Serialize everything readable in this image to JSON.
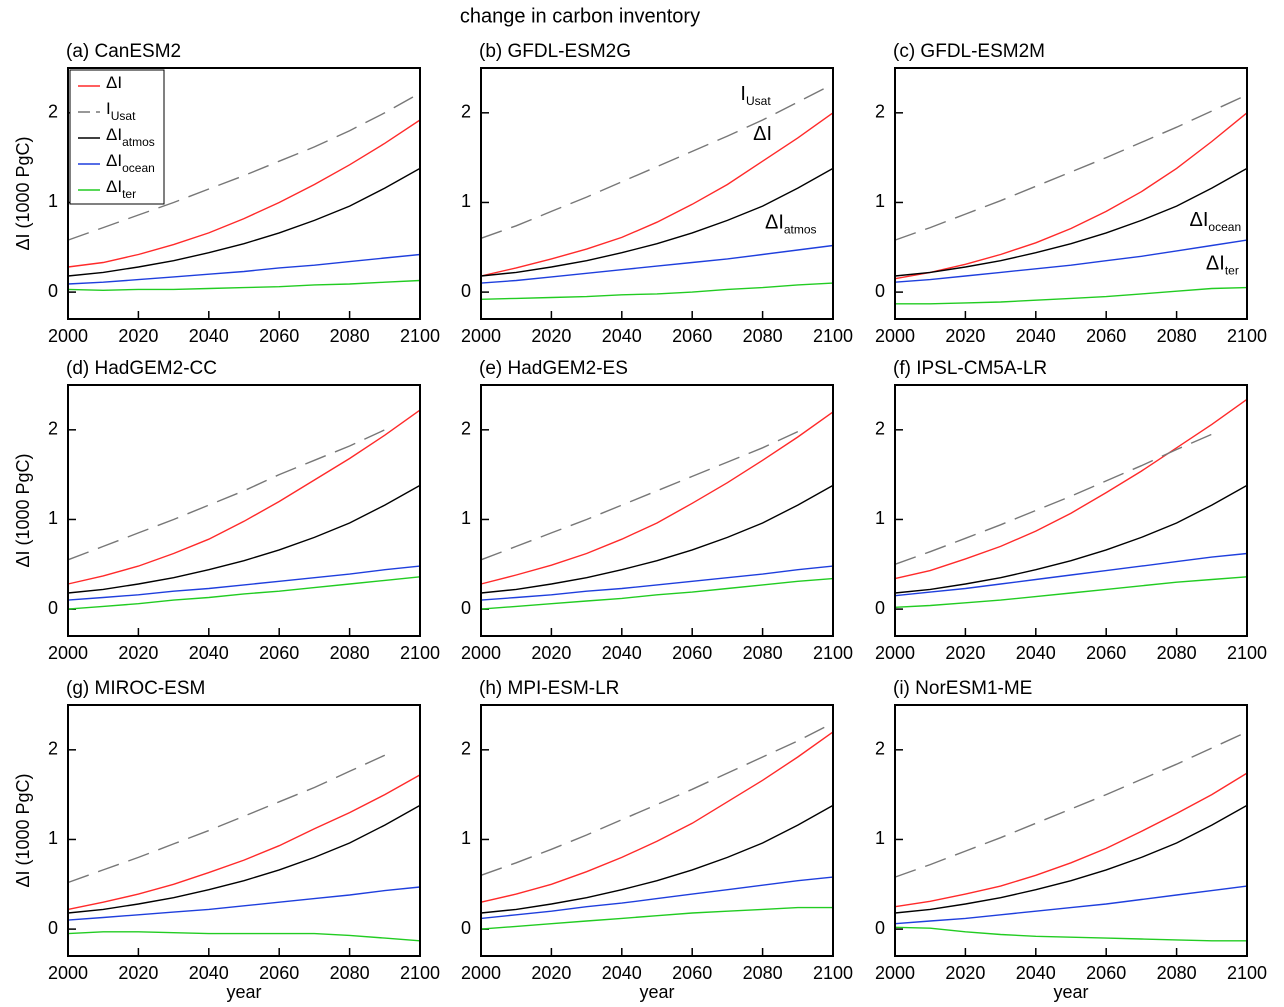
{
  "title": "change in carbon inventory",
  "chart_data": [
    {
      "type": "line",
      "title": "(a) CanESM2",
      "ylabel": "ΔI  (1000 PgC)",
      "legend": "upper left",
      "x": [
        2000,
        2010,
        2020,
        2030,
        2040,
        2050,
        2060,
        2070,
        2080,
        2090,
        2100
      ],
      "xlim": [
        2000,
        2100
      ],
      "ylim": [
        -0.3,
        2.5
      ],
      "xticks": [
        2000,
        2020,
        2040,
        2060,
        2080,
        2100
      ],
      "yticks": [
        0,
        1,
        2
      ],
      "series": [
        {
          "name": "ΔI",
          "color": "#ff2a2a",
          "values": [
            0.28,
            0.33,
            0.42,
            0.53,
            0.66,
            0.82,
            1.0,
            1.2,
            1.42,
            1.66,
            1.92
          ]
        },
        {
          "name": "I",
          "subscript": "Usat",
          "color": "#777777",
          "dash": true,
          "values": [
            0.58,
            0.72,
            0.86,
            1.0,
            1.15,
            1.3,
            1.46,
            1.62,
            1.8,
            2.0,
            2.22
          ]
        },
        {
          "name": "ΔI",
          "subscript": "atmos",
          "color": "#000000",
          "values": [
            0.18,
            0.22,
            0.28,
            0.35,
            0.44,
            0.54,
            0.66,
            0.8,
            0.96,
            1.16,
            1.38
          ]
        },
        {
          "name": "ΔI",
          "subscript": "ocean",
          "color": "#1f3fdd",
          "values": [
            0.09,
            0.11,
            0.14,
            0.17,
            0.2,
            0.23,
            0.27,
            0.3,
            0.34,
            0.38,
            0.42
          ]
        },
        {
          "name": "ΔI",
          "subscript": "ter",
          "color": "#22cc22",
          "values": [
            0.03,
            0.02,
            0.03,
            0.03,
            0.04,
            0.05,
            0.06,
            0.08,
            0.09,
            0.11,
            0.13
          ]
        }
      ]
    },
    {
      "type": "line",
      "title": "(b) GFDL-ESM2G",
      "x": [
        2000,
        2010,
        2020,
        2030,
        2040,
        2050,
        2060,
        2070,
        2080,
        2090,
        2100
      ],
      "xlim": [
        2000,
        2100
      ],
      "ylim": [
        -0.3,
        2.5
      ],
      "xticks": [
        2000,
        2020,
        2040,
        2060,
        2080,
        2100
      ],
      "yticks": [
        0,
        1,
        2
      ],
      "series": [
        {
          "color": "#ff2a2a",
          "values": [
            0.18,
            0.27,
            0.37,
            0.48,
            0.61,
            0.78,
            0.98,
            1.2,
            1.46,
            1.72,
            2.0
          ]
        },
        {
          "color": "#777777",
          "dash": true,
          "values": [
            0.6,
            0.74,
            0.9,
            1.06,
            1.23,
            1.4,
            1.57,
            1.74,
            1.92,
            2.12,
            2.32
          ]
        },
        {
          "color": "#000000",
          "values": [
            0.18,
            0.22,
            0.28,
            0.35,
            0.44,
            0.54,
            0.66,
            0.8,
            0.96,
            1.16,
            1.38
          ]
        },
        {
          "color": "#1f3fdd",
          "values": [
            0.1,
            0.13,
            0.17,
            0.21,
            0.25,
            0.29,
            0.33,
            0.37,
            0.42,
            0.47,
            0.52
          ]
        },
        {
          "color": "#22cc22",
          "values": [
            -0.08,
            -0.07,
            -0.06,
            -0.05,
            -0.03,
            -0.02,
            0.0,
            0.03,
            0.05,
            0.08,
            0.1
          ]
        }
      ],
      "annotations": [
        {
          "text": "I",
          "subscript": "Usat",
          "series": 1
        },
        {
          "text": "ΔI",
          "series": 0
        },
        {
          "text": "ΔI",
          "subscript": "atmos",
          "series": 2
        }
      ]
    },
    {
      "type": "line",
      "title": "(c) GFDL-ESM2M",
      "x": [
        2000,
        2010,
        2020,
        2030,
        2040,
        2050,
        2060,
        2070,
        2080,
        2090,
        2100
      ],
      "xlim": [
        2000,
        2100
      ],
      "ylim": [
        -0.3,
        2.5
      ],
      "xticks": [
        2000,
        2020,
        2040,
        2060,
        2080,
        2100
      ],
      "yticks": [
        0,
        1,
        2
      ],
      "series": [
        {
          "color": "#ff2a2a",
          "values": [
            0.15,
            0.22,
            0.31,
            0.42,
            0.55,
            0.71,
            0.9,
            1.12,
            1.38,
            1.68,
            2.0
          ]
        },
        {
          "color": "#777777",
          "dash": true,
          "values": [
            0.58,
            0.72,
            0.87,
            1.02,
            1.18,
            1.34,
            1.5,
            1.67,
            1.84,
            2.02,
            2.2
          ]
        },
        {
          "color": "#000000",
          "values": [
            0.18,
            0.22,
            0.28,
            0.35,
            0.44,
            0.54,
            0.66,
            0.8,
            0.96,
            1.16,
            1.38
          ]
        },
        {
          "color": "#1f3fdd",
          "values": [
            0.11,
            0.14,
            0.18,
            0.22,
            0.26,
            0.3,
            0.35,
            0.4,
            0.46,
            0.52,
            0.58
          ]
        },
        {
          "color": "#22cc22",
          "values": [
            -0.13,
            -0.13,
            -0.12,
            -0.11,
            -0.09,
            -0.07,
            -0.05,
            -0.02,
            0.01,
            0.04,
            0.05
          ]
        }
      ],
      "annotations": [
        {
          "text": "ΔI",
          "subscript": "ocean",
          "series": 3
        },
        {
          "text": "ΔI",
          "subscript": "ter",
          "series": 4
        }
      ]
    },
    {
      "type": "line",
      "title": "(d) HadGEM2-CC",
      "ylabel": "ΔI  (1000 PgC)",
      "x": [
        2000,
        2010,
        2020,
        2030,
        2040,
        2050,
        2060,
        2070,
        2080,
        2090,
        2100
      ],
      "xlim": [
        2000,
        2100
      ],
      "ylim": [
        -0.3,
        2.5
      ],
      "xticks": [
        2000,
        2020,
        2040,
        2060,
        2080,
        2100
      ],
      "yticks": [
        0,
        1,
        2
      ],
      "series": [
        {
          "color": "#ff2a2a",
          "values": [
            0.28,
            0.37,
            0.48,
            0.62,
            0.78,
            0.98,
            1.2,
            1.44,
            1.68,
            1.94,
            2.22
          ]
        },
        {
          "color": "#777777",
          "dash": true,
          "values": [
            0.55,
            0.7,
            0.85,
            1.0,
            1.16,
            1.32,
            1.5,
            1.66,
            1.82,
            2.0,
            null
          ]
        },
        {
          "color": "#000000",
          "values": [
            0.18,
            0.22,
            0.28,
            0.35,
            0.44,
            0.54,
            0.66,
            0.8,
            0.96,
            1.16,
            1.38
          ]
        },
        {
          "color": "#1f3fdd",
          "values": [
            0.1,
            0.13,
            0.16,
            0.2,
            0.23,
            0.27,
            0.31,
            0.35,
            0.39,
            0.44,
            0.48
          ]
        },
        {
          "color": "#22cc22",
          "values": [
            0.0,
            0.03,
            0.06,
            0.1,
            0.13,
            0.17,
            0.2,
            0.24,
            0.28,
            0.32,
            0.36
          ]
        }
      ]
    },
    {
      "type": "line",
      "title": "(e) HadGEM2-ES",
      "x": [
        2000,
        2010,
        2020,
        2030,
        2040,
        2050,
        2060,
        2070,
        2080,
        2090,
        2100
      ],
      "xlim": [
        2000,
        2100
      ],
      "ylim": [
        -0.3,
        2.5
      ],
      "xticks": [
        2000,
        2020,
        2040,
        2060,
        2080,
        2100
      ],
      "yticks": [
        0,
        1,
        2
      ],
      "series": [
        {
          "color": "#ff2a2a",
          "values": [
            0.28,
            0.38,
            0.49,
            0.62,
            0.78,
            0.96,
            1.18,
            1.41,
            1.66,
            1.92,
            2.2
          ]
        },
        {
          "color": "#777777",
          "dash": true,
          "values": [
            0.55,
            0.7,
            0.85,
            1.0,
            1.16,
            1.32,
            1.48,
            1.64,
            1.8,
            1.98,
            null
          ]
        },
        {
          "color": "#000000",
          "values": [
            0.18,
            0.22,
            0.28,
            0.35,
            0.44,
            0.54,
            0.66,
            0.8,
            0.96,
            1.16,
            1.38
          ]
        },
        {
          "color": "#1f3fdd",
          "values": [
            0.1,
            0.13,
            0.16,
            0.2,
            0.23,
            0.27,
            0.31,
            0.35,
            0.39,
            0.44,
            0.48
          ]
        },
        {
          "color": "#22cc22",
          "values": [
            0.0,
            0.03,
            0.06,
            0.09,
            0.12,
            0.16,
            0.19,
            0.23,
            0.27,
            0.31,
            0.34
          ]
        }
      ]
    },
    {
      "type": "line",
      "title": "(f) IPSL-CM5A-LR",
      "x": [
        2000,
        2010,
        2020,
        2030,
        2040,
        2050,
        2060,
        2070,
        2080,
        2090,
        2100
      ],
      "xlim": [
        2000,
        2100
      ],
      "ylim": [
        -0.3,
        2.5
      ],
      "xticks": [
        2000,
        2020,
        2040,
        2060,
        2080,
        2100
      ],
      "yticks": [
        0,
        1,
        2
      ],
      "series": [
        {
          "color": "#ff2a2a",
          "values": [
            0.34,
            0.43,
            0.56,
            0.7,
            0.87,
            1.07,
            1.3,
            1.54,
            1.8,
            2.06,
            2.34
          ]
        },
        {
          "color": "#777777",
          "dash": true,
          "values": [
            0.5,
            0.64,
            0.79,
            0.94,
            1.1,
            1.26,
            1.43,
            1.6,
            1.78,
            1.95,
            null
          ]
        },
        {
          "color": "#000000",
          "values": [
            0.18,
            0.22,
            0.28,
            0.35,
            0.44,
            0.54,
            0.66,
            0.8,
            0.96,
            1.16,
            1.38
          ]
        },
        {
          "color": "#1f3fdd",
          "values": [
            0.15,
            0.19,
            0.23,
            0.28,
            0.33,
            0.38,
            0.43,
            0.48,
            0.53,
            0.58,
            0.62
          ]
        },
        {
          "color": "#22cc22",
          "values": [
            0.02,
            0.04,
            0.07,
            0.1,
            0.14,
            0.18,
            0.22,
            0.26,
            0.3,
            0.33,
            0.36
          ]
        }
      ]
    },
    {
      "type": "line",
      "title": "(g) MIROC-ESM",
      "ylabel": "ΔI  (1000 PgC)",
      "xlabel": "year",
      "x": [
        2000,
        2010,
        2020,
        2030,
        2040,
        2050,
        2060,
        2070,
        2080,
        2090,
        2100
      ],
      "xlim": [
        2000,
        2100
      ],
      "ylim": [
        -0.3,
        2.5
      ],
      "xticks": [
        2000,
        2020,
        2040,
        2060,
        2080,
        2100
      ],
      "yticks": [
        0,
        1,
        2
      ],
      "series": [
        {
          "color": "#ff2a2a",
          "values": [
            0.22,
            0.3,
            0.39,
            0.5,
            0.63,
            0.77,
            0.93,
            1.12,
            1.3,
            1.5,
            1.72
          ]
        },
        {
          "color": "#777777",
          "dash": true,
          "values": [
            0.52,
            0.66,
            0.8,
            0.95,
            1.1,
            1.26,
            1.42,
            1.58,
            1.76,
            1.94,
            null
          ]
        },
        {
          "color": "#000000",
          "values": [
            0.18,
            0.22,
            0.28,
            0.35,
            0.44,
            0.54,
            0.66,
            0.8,
            0.96,
            1.16,
            1.38
          ]
        },
        {
          "color": "#1f3fdd",
          "values": [
            0.1,
            0.13,
            0.16,
            0.19,
            0.22,
            0.26,
            0.3,
            0.34,
            0.38,
            0.43,
            0.47
          ]
        },
        {
          "color": "#22cc22",
          "values": [
            -0.05,
            -0.03,
            -0.03,
            -0.04,
            -0.05,
            -0.05,
            -0.05,
            -0.05,
            -0.07,
            -0.1,
            -0.13
          ]
        }
      ]
    },
    {
      "type": "line",
      "title": "(h) MPI-ESM-LR",
      "xlabel": "year",
      "x": [
        2000,
        2010,
        2020,
        2030,
        2040,
        2050,
        2060,
        2070,
        2080,
        2090,
        2100
      ],
      "xlim": [
        2000,
        2100
      ],
      "ylim": [
        -0.3,
        2.5
      ],
      "xticks": [
        2000,
        2020,
        2040,
        2060,
        2080,
        2100
      ],
      "yticks": [
        0,
        1,
        2
      ],
      "series": [
        {
          "color": "#ff2a2a",
          "values": [
            0.3,
            0.39,
            0.5,
            0.64,
            0.8,
            0.98,
            1.18,
            1.42,
            1.66,
            1.92,
            2.2
          ]
        },
        {
          "color": "#777777",
          "dash": true,
          "values": [
            0.6,
            0.74,
            0.89,
            1.05,
            1.22,
            1.39,
            1.56,
            1.74,
            1.92,
            2.1,
            2.3
          ]
        },
        {
          "color": "#000000",
          "values": [
            0.18,
            0.22,
            0.28,
            0.35,
            0.44,
            0.54,
            0.66,
            0.8,
            0.96,
            1.16,
            1.38
          ]
        },
        {
          "color": "#1f3fdd",
          "values": [
            0.12,
            0.16,
            0.2,
            0.25,
            0.29,
            0.34,
            0.39,
            0.44,
            0.49,
            0.54,
            0.58
          ]
        },
        {
          "color": "#22cc22",
          "values": [
            0.0,
            0.03,
            0.06,
            0.09,
            0.12,
            0.15,
            0.18,
            0.2,
            0.22,
            0.24,
            0.24
          ]
        }
      ]
    },
    {
      "type": "line",
      "title": "(i) NorESM1-ME",
      "xlabel": "year",
      "x": [
        2000,
        2010,
        2020,
        2030,
        2040,
        2050,
        2060,
        2070,
        2080,
        2090,
        2100
      ],
      "xlim": [
        2000,
        2100
      ],
      "ylim": [
        -0.3,
        2.5
      ],
      "xticks": [
        2000,
        2020,
        2040,
        2060,
        2080,
        2100
      ],
      "yticks": [
        0,
        1,
        2
      ],
      "series": [
        {
          "color": "#ff2a2a",
          "values": [
            0.25,
            0.31,
            0.39,
            0.48,
            0.6,
            0.74,
            0.9,
            1.09,
            1.29,
            1.5,
            1.74
          ]
        },
        {
          "color": "#777777",
          "dash": true,
          "values": [
            0.58,
            0.72,
            0.87,
            1.02,
            1.18,
            1.34,
            1.5,
            1.67,
            1.84,
            2.02,
            2.2
          ]
        },
        {
          "color": "#000000",
          "values": [
            0.18,
            0.22,
            0.28,
            0.35,
            0.44,
            0.54,
            0.66,
            0.8,
            0.96,
            1.16,
            1.38
          ]
        },
        {
          "color": "#1f3fdd",
          "values": [
            0.06,
            0.09,
            0.12,
            0.16,
            0.2,
            0.24,
            0.28,
            0.33,
            0.38,
            0.43,
            0.48
          ]
        },
        {
          "color": "#22cc22",
          "values": [
            0.02,
            0.01,
            -0.03,
            -0.06,
            -0.08,
            -0.09,
            -0.1,
            -0.11,
            -0.12,
            -0.13,
            -0.13
          ]
        }
      ]
    }
  ]
}
